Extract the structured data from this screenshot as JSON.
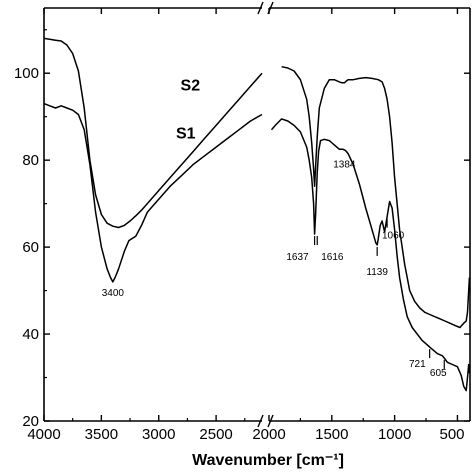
{
  "chart_data": {
    "type": "line",
    "title": "",
    "xlabel": "Wavenumber [cm⁻¹]",
    "ylabel": "",
    "x_reversed": true,
    "x_axis_break": [
      2100,
      2000
    ],
    "xlim": [
      4000,
      400
    ],
    "ylim": [
      20,
      115
    ],
    "x_ticks": [
      4000,
      3500,
      3000,
      2500,
      2000,
      1500,
      1000,
      500
    ],
    "x_tick_labels": [
      "4000",
      "3500",
      "3000",
      "2500",
      "2000",
      "1500",
      "1000",
      "500"
    ],
    "y_ticks": [
      20,
      40,
      60,
      80,
      100
    ],
    "y_tick_labels": [
      "20",
      "40",
      "60",
      "80",
      "100"
    ],
    "grid": false,
    "series": [
      {
        "name": "S2",
        "x": [
          4000,
          3950,
          3900,
          3850,
          3800,
          3750,
          3700,
          3650,
          3600,
          3550,
          3500,
          3450,
          3400,
          3350,
          3300,
          3250,
          3200,
          3150,
          3100,
          3000,
          2900,
          2800,
          2700,
          2600,
          2500,
          2400,
          2300,
          2200,
          2100,
          1900,
          1850,
          1800,
          1750,
          1700,
          1680,
          1660,
          1645,
          1637,
          1628,
          1615,
          1600,
          1560,
          1520,
          1480,
          1440,
          1420,
          1400,
          1384,
          1370,
          1330,
          1280,
          1230,
          1180,
          1130,
          1100,
          1080,
          1060,
          1040,
          1020,
          1000,
          960,
          920,
          880,
          840,
          800,
          760,
          720,
          680,
          640,
          600,
          560,
          520,
          480,
          450,
          430,
          420,
          410,
          405
        ],
        "y": [
          108,
          107.8,
          107.6,
          107.4,
          106.5,
          104.5,
          100.5,
          92,
          80,
          72,
          67.5,
          65.5,
          64.8,
          64.5,
          65,
          66,
          67.2,
          68.5,
          70,
          73,
          76,
          79,
          82,
          85,
          88,
          91,
          94,
          97,
          100,
          101.5,
          101.2,
          100.5,
          98.5,
          94,
          90,
          84,
          78,
          74,
          79,
          86,
          92,
          96.5,
          98.5,
          98.5,
          98,
          97.8,
          97.8,
          98.2,
          98.5,
          98.5,
          98.8,
          99,
          98.8,
          98.5,
          98,
          96.5,
          94,
          90,
          84,
          76,
          64,
          56,
          50,
          47.5,
          46,
          45,
          44.5,
          44,
          43.5,
          43,
          42.5,
          42,
          41.5,
          42.5,
          43,
          45,
          50,
          53
        ]
      },
      {
        "name": "S1",
        "x": [
          4000,
          3950,
          3900,
          3850,
          3800,
          3750,
          3700,
          3650,
          3600,
          3550,
          3500,
          3450,
          3420,
          3400,
          3380,
          3350,
          3300,
          3260,
          3230,
          3200,
          3150,
          3100,
          3000,
          2900,
          2800,
          2700,
          2600,
          2500,
          2400,
          2300,
          2200,
          2100,
          1980,
          1950,
          1900,
          1850,
          1800,
          1750,
          1700,
          1680,
          1660,
          1645,
          1637,
          1628,
          1616,
          1605,
          1590,
          1560,
          1520,
          1480,
          1440,
          1410,
          1395,
          1384,
          1370,
          1330,
          1280,
          1230,
          1200,
          1170,
          1150,
          1139,
          1130,
          1115,
          1100,
          1080,
          1060,
          1040,
          1020,
          1000,
          980,
          960,
          930,
          900,
          860,
          820,
          780,
          740,
          721,
          700,
          660,
          620,
          605,
          580,
          540,
          500,
          470,
          450,
          430,
          420,
          410,
          405
        ],
        "y": [
          93,
          92.5,
          92,
          92.5,
          92,
          91.5,
          90.5,
          87,
          79,
          68,
          60,
          55,
          53,
          52,
          53,
          55,
          59,
          61.5,
          62,
          62.5,
          65,
          68,
          71,
          74,
          76.5,
          79,
          81,
          83,
          85,
          87,
          89,
          90.5,
          87,
          88,
          89.5,
          89,
          88,
          86.5,
          83,
          80,
          76,
          70,
          63,
          68,
          77,
          82,
          84.5,
          84.8,
          84.5,
          83.5,
          82.5,
          82.5,
          82.3,
          82,
          81.5,
          79,
          74.5,
          69,
          66,
          63,
          61,
          60.5,
          62,
          65,
          66,
          63.5,
          67,
          70.5,
          69,
          64,
          58,
          53,
          48,
          44,
          41.5,
          40,
          38.5,
          37.5,
          37,
          36.5,
          35.5,
          35,
          34.5,
          33.5,
          33,
          32.5,
          30.5,
          28,
          27,
          30,
          33,
          31
        ]
      }
    ],
    "series_labels": [
      {
        "text": "S2",
        "x": 2810,
        "y": 96
      },
      {
        "text": "S1",
        "x": 2850,
        "y": 85
      }
    ],
    "annotations": [
      {
        "text": "3400",
        "x": 3400,
        "y": 52
      },
      {
        "text": "1637",
        "x": 1637,
        "y": 63
      },
      {
        "text": "1616",
        "x": 1616,
        "y": 63
      },
      {
        "text": "1384",
        "x": 1384,
        "y": 82
      },
      {
        "text": "1139",
        "x": 1139,
        "y": 60.5
      },
      {
        "text": "1060",
        "x": 1060,
        "y": 67
      },
      {
        "text": "721",
        "x": 721,
        "y": 37
      },
      {
        "text": "605",
        "x": 605,
        "y": 34.5
      }
    ]
  }
}
